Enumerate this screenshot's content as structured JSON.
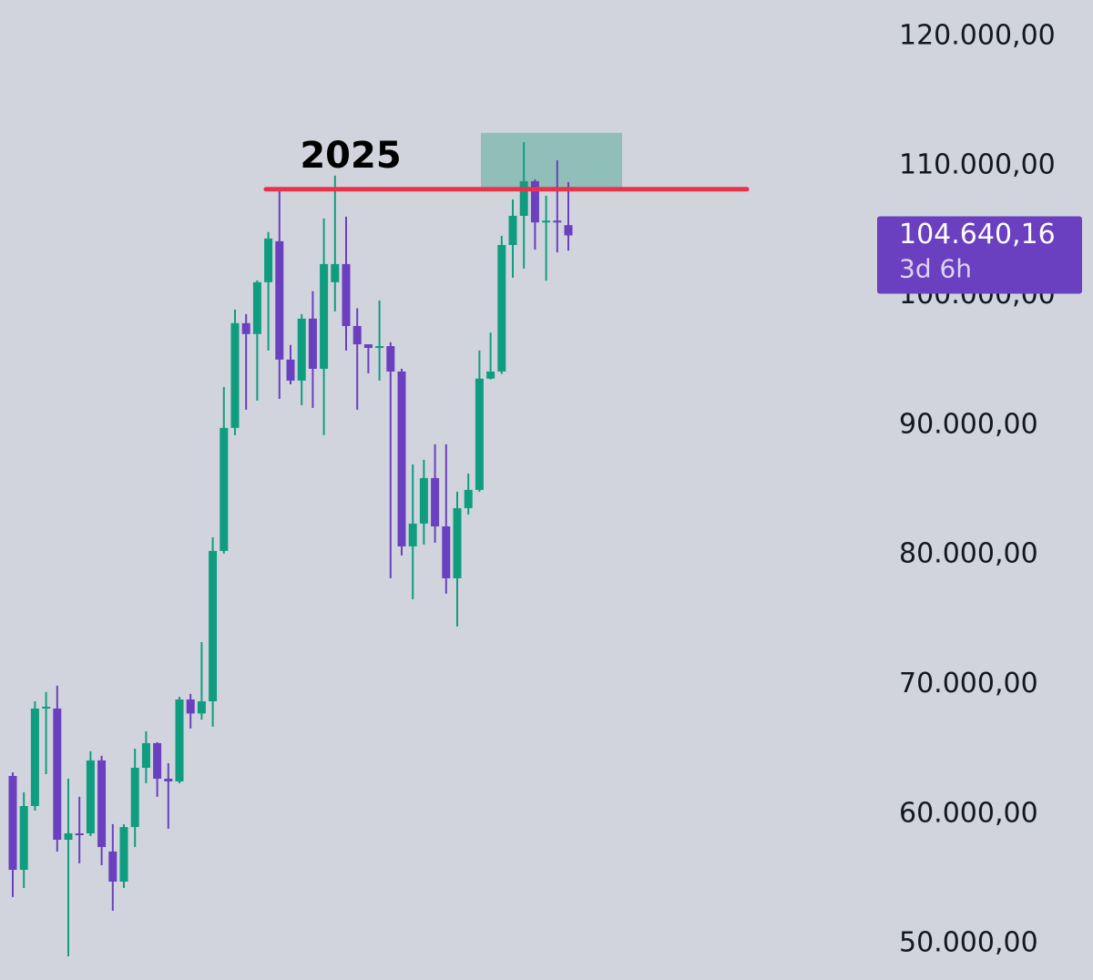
{
  "chart_data": {
    "type": "candlestick",
    "annotation": "2025",
    "up_color": "#0f9d80",
    "down_color": "#6a3fc0",
    "ylim": [
      47200,
      122800
    ],
    "yticks": [
      {
        "value": 120000,
        "label": "120.000,00"
      },
      {
        "value": 110000,
        "label": "110.000,00"
      },
      {
        "value": 100000,
        "label": "100.000,00"
      },
      {
        "value": 90000,
        "label": "90.000,00"
      },
      {
        "value": 80000,
        "label": "80.000,00"
      },
      {
        "value": 70000,
        "label": "70.000,00"
      },
      {
        "value": 60000,
        "label": "60.000,00"
      },
      {
        "value": 50000,
        "label": "50.000,00"
      }
    ],
    "resistance": {
      "value": 108200,
      "color": "#e8344a"
    },
    "zone": {
      "low": 108270,
      "high": 112550,
      "color": "#8fbfb8"
    },
    "price_label": {
      "value": 104640.16,
      "label": "104.640,16",
      "countdown": "3d 6h",
      "color": "#6a3fc0"
    },
    "open": [
      62940,
      55700,
      60620,
      68140,
      68140,
      58020,
      58510,
      58510,
      64140,
      57110,
      54790,
      59000,
      63570,
      65470,
      62730,
      62520,
      68840,
      67760,
      68700,
      80300,
      89790,
      97870,
      97030,
      101030,
      104190,
      95060,
      93440,
      98220,
      94350,
      101030,
      102430,
      97650,
      96240,
      95960,
      96100,
      94140,
      80650,
      82410,
      85920,
      82190,
      78190,
      83600,
      85010,
      93590,
      94140,
      103900,
      106150,
      108820,
      105640,
      105780,
      105430
    ],
    "high": [
      63220,
      61680,
      68700,
      69410,
      69900,
      62730,
      61330,
      64840,
      64490,
      59220,
      59220,
      65050,
      66380,
      65540,
      63930,
      69050,
      69270,
      73270,
      81350,
      92950,
      98920,
      98570,
      101170,
      104900,
      108200,
      96190,
      98570,
      100330,
      105950,
      109250,
      106090,
      99030,
      96190,
      99620,
      96390,
      94350,
      86980,
      87330,
      88520,
      88520,
      84870,
      86270,
      95760,
      97140,
      104600,
      107410,
      111840,
      108960,
      107700,
      110430,
      108760
    ],
    "low": [
      53600,
      54300,
      60270,
      63080,
      57110,
      49030,
      56200,
      58300,
      56050,
      52540,
      54300,
      57460,
      62380,
      61330,
      58870,
      62380,
      66600,
      67290,
      66740,
      80090,
      89230,
      91190,
      91890,
      95760,
      92030,
      93150,
      91540,
      91330,
      89230,
      98780,
      95760,
      91190,
      94000,
      93440,
      78190,
      79950,
      76570,
      80790,
      80930,
      77000,
      74470,
      83110,
      84870,
      93530,
      93950,
      101380,
      102080,
      103540,
      101140,
      103330,
      103470
    ],
    "close": [
      55700,
      60620,
      68140,
      68280,
      58020,
      58510,
      58370,
      64140,
      57460,
      54790,
      59000,
      63570,
      65470,
      62730,
      62520,
      68840,
      67760,
      68700,
      80300,
      89790,
      97870,
      97030,
      101030,
      104400,
      95060,
      93440,
      98220,
      94350,
      102430,
      102430,
      97650,
      96240,
      95960,
      96100,
      94140,
      80650,
      82410,
      85920,
      82190,
      78190,
      83600,
      85010,
      93590,
      94140,
      103900,
      106150,
      108820,
      105640,
      105780,
      105640,
      104640.16
    ]
  }
}
